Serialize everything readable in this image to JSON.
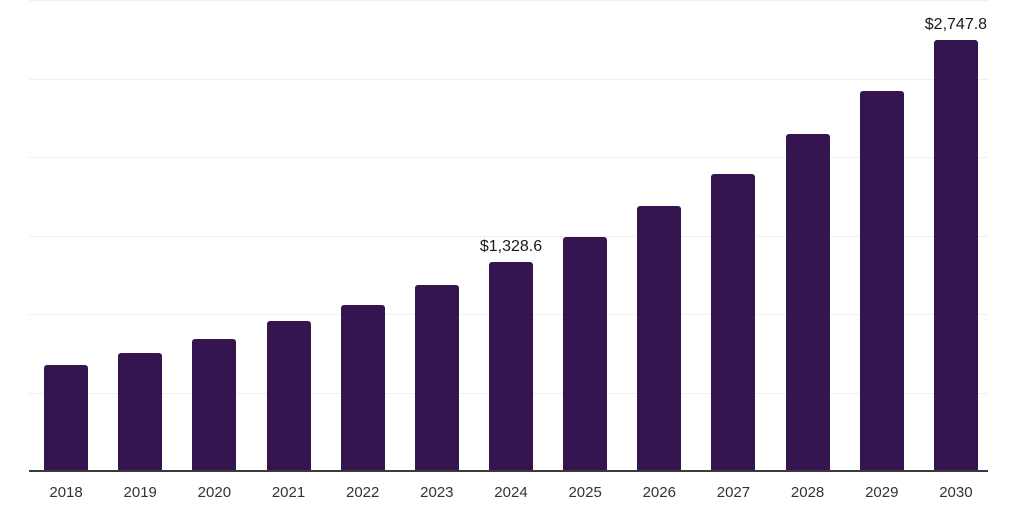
{
  "chart_data": {
    "type": "bar",
    "title": "",
    "xlabel": "",
    "ylabel": "",
    "categories": [
      "2018",
      "2019",
      "2020",
      "2021",
      "2022",
      "2023",
      "2024",
      "2025",
      "2026",
      "2027",
      "2028",
      "2029",
      "2030"
    ],
    "values": [
      676,
      753,
      843,
      953,
      1060,
      1186,
      1328.6,
      1490,
      1687,
      1892,
      2145,
      2421,
      2747.8
    ],
    "point_labels": [
      "",
      "",
      "",
      "",
      "",
      "",
      "$1,328.6",
      "",
      "",
      "",
      "",
      "",
      "$2,747.8"
    ],
    "ylim": [
      0,
      3000
    ],
    "gridline_step": 500,
    "grid": "horizontal",
    "legend_position": "none",
    "colors": {
      "bar": "#351550",
      "gridline": "#f0f0f0",
      "axis_line": "#3a3a3a",
      "value_label_text": "#1a1a1a",
      "tick_label_text": "#333333",
      "background": "#ffffff"
    }
  }
}
